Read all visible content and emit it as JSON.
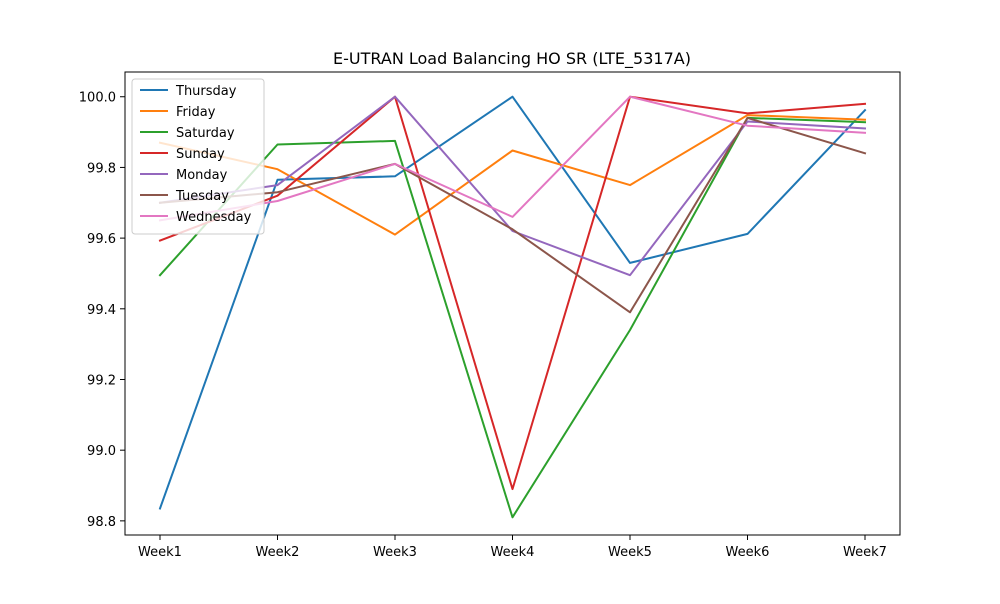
{
  "chart_data": {
    "type": "line",
    "title": "E-UTRAN Load Balancing HO SR (LTE_5317A)",
    "xlabel": "",
    "ylabel": "",
    "categories": [
      "Week1",
      "Week2",
      "Week3",
      "Week4",
      "Week5",
      "Week6",
      "Week7"
    ],
    "ylim": [
      98.76,
      100.07
    ],
    "yticks": [
      98.8,
      99.0,
      99.2,
      99.4,
      99.6,
      99.8,
      100.0
    ],
    "ytick_labels": [
      "98.8",
      "99.0",
      "99.2",
      "99.4",
      "99.6",
      "99.8",
      "100.0"
    ],
    "grid": false,
    "legend_position": "top-left",
    "series": [
      {
        "name": "Thursday",
        "color": "#1f77b4",
        "values": [
          98.835,
          99.765,
          99.775,
          100.0,
          99.53,
          99.612,
          99.962
        ]
      },
      {
        "name": "Friday",
        "color": "#ff7f0e",
        "values": [
          99.87,
          99.795,
          99.61,
          99.848,
          99.75,
          99.948,
          99.935
        ]
      },
      {
        "name": "Saturday",
        "color": "#2ca02c",
        "values": [
          99.495,
          99.865,
          99.875,
          98.81,
          99.34,
          99.94,
          99.928
        ]
      },
      {
        "name": "Sunday",
        "color": "#d62728",
        "values": [
          99.593,
          99.72,
          100.0,
          98.89,
          100.0,
          99.953,
          99.98
        ]
      },
      {
        "name": "Monday",
        "color": "#9467bd",
        "values": [
          99.7,
          99.75,
          100.0,
          99.62,
          99.495,
          99.93,
          99.91
        ]
      },
      {
        "name": "Tuesday",
        "color": "#8c564b",
        "values": [
          99.7,
          99.73,
          99.81,
          99.625,
          99.39,
          99.94,
          99.84
        ]
      },
      {
        "name": "Wednesday",
        "color": "#e377c2",
        "values": [
          99.65,
          99.705,
          99.81,
          99.66,
          100.0,
          99.918,
          99.898
        ]
      }
    ]
  }
}
